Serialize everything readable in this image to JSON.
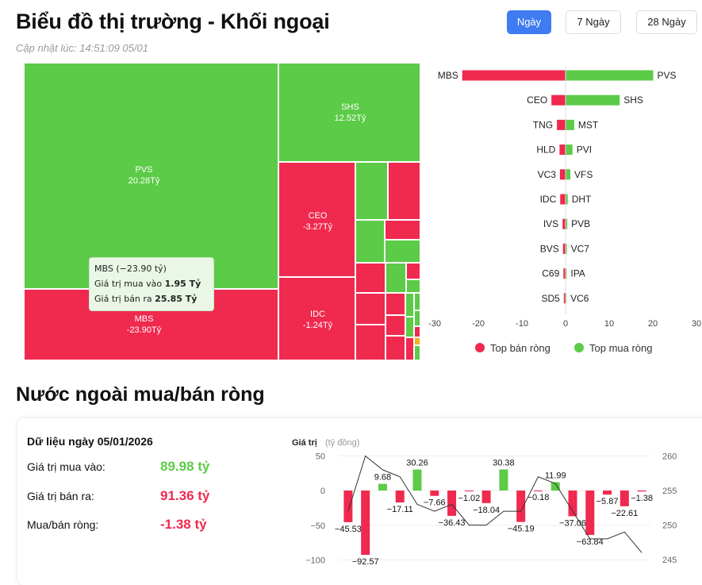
{
  "header": {
    "title": "Biểu đồ thị trường - Khối ngoại",
    "updated": "Cập nhật lúc: 14:51:09 05/01",
    "ranges": [
      "Ngày",
      "7 Ngày",
      "28 Ngày"
    ],
    "active_range": "Ngày"
  },
  "colors": {
    "buy": "#5ccb47",
    "sell": "#f0294f",
    "accent": "#3f7cf2",
    "small_yellow": "#f0b21a"
  },
  "treemap": {
    "labeled_tiles": [
      {
        "ticker": "PVS",
        "value": "20.28Tỷ",
        "side": "buy"
      },
      {
        "ticker": "MBS",
        "value": "-23.90Tỷ",
        "side": "sell"
      },
      {
        "ticker": "SHS",
        "value": "12.52Tỷ",
        "side": "buy"
      },
      {
        "ticker": "CEO",
        "value": "-3.27Tỷ",
        "side": "sell"
      },
      {
        "ticker": "IDC",
        "value": "-1.24Tỷ",
        "side": "sell"
      }
    ],
    "tooltip": {
      "title": "MBS (−23.90 tỷ)",
      "buy_label": "Giá trị mua vào",
      "buy_value": "1.95 Tỷ",
      "sell_label": "Giá trị bán ra",
      "sell_value": "25.85 Tỷ"
    }
  },
  "chart_data": [
    {
      "type": "bar",
      "orientation": "horizontal",
      "title": "",
      "sell_tickers": [
        "MBS",
        "CEO",
        "TNG",
        "HLD",
        "VC3",
        "IDC",
        "IVS",
        "BVS",
        "C69",
        "SD5"
      ],
      "buy_tickers": [
        "PVS",
        "SHS",
        "MST",
        "PVI",
        "VFS",
        "DHT",
        "PVB",
        "VC7",
        "IPA",
        "VC6"
      ],
      "series": [
        {
          "name": "Top bán ròng",
          "values": [
            -23.9,
            -3.27,
            -2.0,
            -1.4,
            -1.3,
            -1.24,
            -0.7,
            -0.6,
            -0.5,
            -0.4
          ]
        },
        {
          "name": "Top mua ròng",
          "values": [
            20.28,
            12.52,
            2.0,
            1.6,
            1.1,
            0.5,
            0.4,
            0.3,
            0.25,
            0.2
          ]
        }
      ],
      "xticks": [
        "-30",
        "-20",
        "-10",
        "0",
        "10",
        "20",
        "30"
      ],
      "xlim": [
        -30,
        30
      ],
      "legend": "bottom"
    },
    {
      "type": "bar",
      "title": "Giá trị",
      "ylabel_unit": "(tỷ đồng)",
      "values": [
        -45.53,
        -92.57,
        9.68,
        -17.11,
        30.26,
        -7.66,
        -36.43,
        -1.02,
        -18.04,
        30.38,
        -45.19,
        -0.18,
        11.99,
        -37.06,
        -63.84,
        -5.87,
        -22.61,
        -1.38
      ],
      "value_labels": [
        "−45.53",
        "−92.57",
        "9.68",
        "−17.11",
        "30.26",
        "−7.66",
        "−36.43",
        "−1.02",
        "−18.04",
        "30.38",
        "−45.19",
        "−0.18",
        "11.99",
        "−37.06",
        "−63.84",
        "−5.87",
        "−22.61",
        "−1.38"
      ],
      "index_line": [
        252,
        260,
        258,
        257,
        253,
        252,
        253,
        250,
        250,
        252,
        252,
        257,
        256,
        252,
        248,
        248,
        249,
        246
      ],
      "ylim": [
        -100,
        50
      ],
      "y2lim": [
        245,
        260
      ],
      "yticks_left": [
        "50",
        "0",
        "−50",
        "−100"
      ],
      "yticks_right": [
        "260",
        "255",
        "250",
        "245"
      ]
    }
  ],
  "summary": {
    "heading": "Nước ngoài mua/bán ròng",
    "date_label": "Dữ liệu ngày 05/01/2026",
    "rows": [
      {
        "label": "Giá trị mua vào:",
        "value": "89.98 tỷ",
        "side": "buy"
      },
      {
        "label": "Giá trị bán ra:",
        "value": "91.36 tỷ",
        "side": "sell"
      },
      {
        "label": "Mua/bán ròng:",
        "value": "-1.38 tỷ",
        "side": "sell"
      }
    ]
  }
}
